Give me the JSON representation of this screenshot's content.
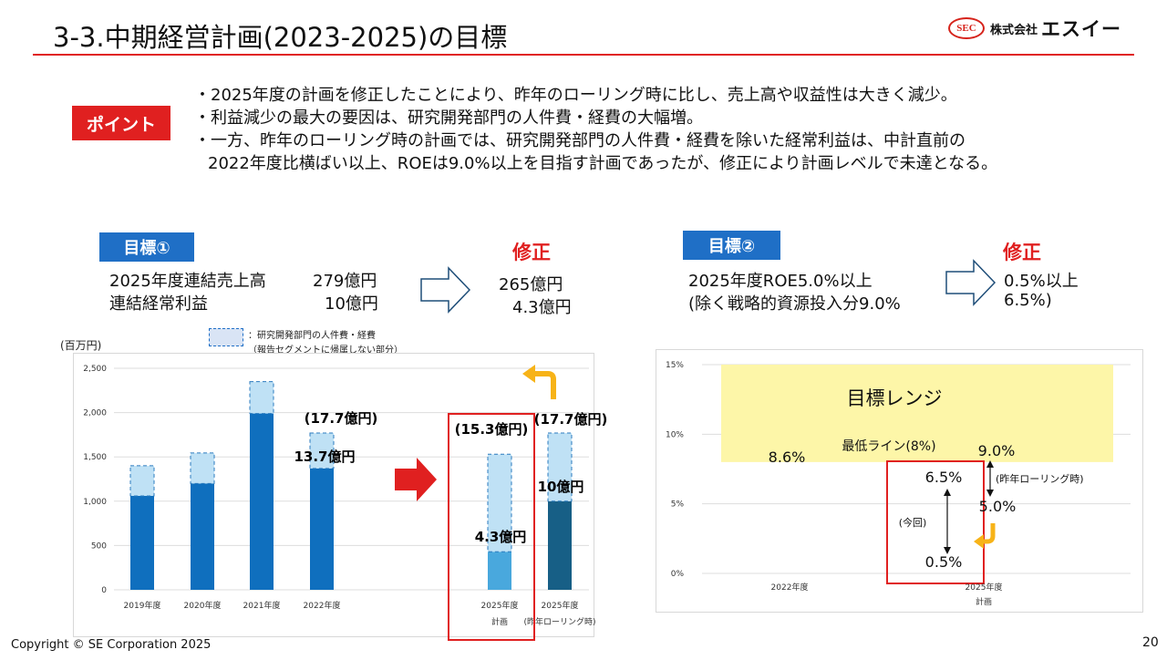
{
  "header": {
    "title": "3-3.中期経営計画(2023-2025)の目標",
    "logo_badge": "SEC",
    "logo_company": "株式会社",
    "logo_name": "エスイー"
  },
  "point": {
    "badge": "ポイント",
    "bullets": [
      "・2025年度の計画を修正したことにより、昨年のローリング時に比し、売上高や収益性は大きく減少。",
      "・利益減少の最大の要因は、研究開発部門の人件費・経費の大幅増。",
      "・一方、昨年のローリング時の計画では、研究開発部門の人件費・経費を除いた経常利益は、中計直前の",
      "2022年度比横ばい以上、ROEは9.0%以上を目指す計画であったが、修正により計画レベルで未達となる。"
    ]
  },
  "goal1": {
    "badge": "目標①",
    "correction_label": "修正",
    "rows": [
      {
        "label": "2025年度連結売上高",
        "value": "279億円",
        "revised": "265億円"
      },
      {
        "label": "連結経常利益",
        "value": "10億円",
        "revised": "4.3億円"
      }
    ]
  },
  "goal2": {
    "badge": "目標②",
    "correction_label": "修正",
    "line1": "2025年度ROE5.0%以上",
    "line2": "(除く戦略的資源投入分9.0%",
    "revised1": "0.5%以上",
    "revised2": "6.5%)"
  },
  "colors": {
    "accent_red": "#e02020",
    "bar_blue": "#0f6fbe",
    "bar_light": "#bfe1f5",
    "bar_dark": "#175f86",
    "bar_2025": "#49a8dd",
    "band_yellow": "#fdf6a8",
    "arrow_orange": "#f7b318"
  },
  "chart_left": {
    "unit": "(百万円)",
    "legend_line1": "：研究開発部門の人件費・経費",
    "legend_line2": "（報告セグメントに帰属しない部分）",
    "yticks": [
      "2,500",
      "2,000",
      "1,500",
      "1,000",
      "500",
      "0"
    ],
    "categories": [
      {
        "line1": "2019年度",
        "line2": ""
      },
      {
        "line1": "2020年度",
        "line2": ""
      },
      {
        "line1": "2021年度",
        "line2": ""
      },
      {
        "line1": "2022年度",
        "line2": ""
      },
      {
        "line1": "2025年度",
        "line2": "計画"
      },
      {
        "line1": "2025年度",
        "line2": "(昨年ローリング時)"
      }
    ],
    "annotations": {
      "fy2022_total": "(17.7億円)",
      "fy2022_base": "13.7億円",
      "plan_total": "(15.3億円)",
      "plan_base": "4.3億円",
      "rolling_total": "(17.7億円)",
      "rolling_base": "10億円"
    }
  },
  "chart_right": {
    "yticks": [
      "15%",
      "10%",
      "5%",
      "0%"
    ],
    "band_label": "目標レンジ",
    "min_line_label": "最低ライン(8%)",
    "categories": [
      {
        "line1": "2022年度",
        "line2": ""
      },
      {
        "line1": "2025年度",
        "line2": "計画"
      }
    ],
    "values": {
      "fy2022": "8.6%",
      "rolling_plan_high": "9.0%",
      "rolling_plan_low": "5.0%",
      "current_high": "6.5%",
      "current_low": "0.5%"
    },
    "note_rolling": "(昨年ローリング時)",
    "note_current": "(今回)"
  },
  "chart_data": [
    {
      "type": "bar",
      "title": "",
      "ylabel": "(百万円)",
      "ylim": [
        0,
        2500
      ],
      "grid": true,
      "categories": [
        "2019年度",
        "2020年度",
        "2021年度",
        "2022年度",
        "2025年度計画",
        "2025年度(昨年ローリング時)"
      ],
      "series": [
        {
          "name": "",
          "values": [
            1060,
            1200,
            1990,
            1370,
            430,
            1000
          ]
        },
        {
          "name": "研究開発部門の人件費・経費",
          "values": [
            340,
            345,
            360,
            400,
            1100,
            770
          ]
        }
      ]
    },
    {
      "type": "line",
      "title": "",
      "ylim": [
        0,
        15
      ],
      "grid": true,
      "categories": [
        "2022年度",
        "2025年度計画"
      ],
      "series": [
        {
          "name": "",
          "values": [
            8.6,
            9.0
          ]
        },
        {
          "name": "",
          "values": [
            null,
            5.0
          ]
        },
        {
          "name": "",
          "values": [
            null,
            6.5
          ]
        },
        {
          "name": "",
          "values": [
            null,
            0.5
          ]
        }
      ]
    }
  ],
  "footer": {
    "copyright": "Copyright © SE Corporation 2025",
    "page": "20"
  }
}
